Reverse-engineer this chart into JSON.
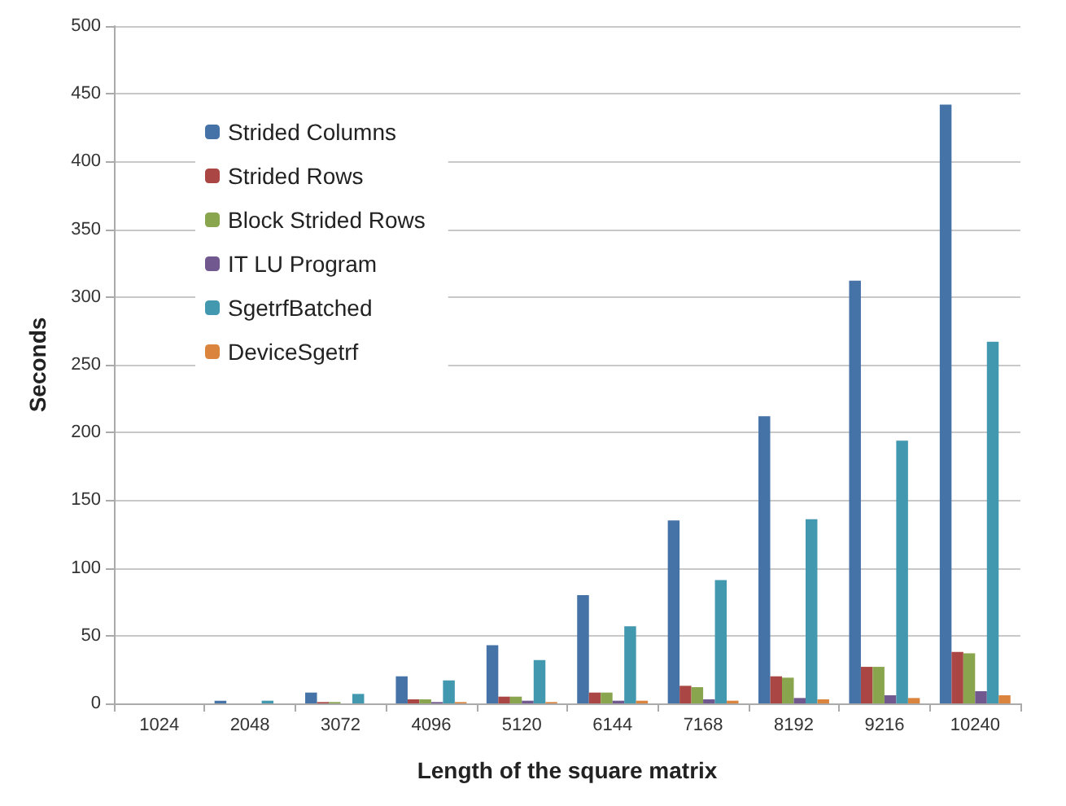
{
  "chart_data": {
    "type": "bar",
    "xlabel": "Length of the square matrix",
    "ylabel": "Seconds",
    "categories": [
      "1024",
      "2048",
      "3072",
      "4096",
      "5120",
      "6144",
      "7168",
      "8192",
      "9216",
      "10240"
    ],
    "series": [
      {
        "name": "Strided Columns",
        "color": "#4572a7",
        "values": [
          0,
          2,
          8,
          20,
          43,
          80,
          135,
          212,
          312,
          442
        ]
      },
      {
        "name": "Strided Rows",
        "color": "#aa4643",
        "values": [
          0,
          0,
          1,
          3,
          5,
          8,
          13,
          20,
          27,
          38
        ]
      },
      {
        "name": "Block Strided Rows",
        "color": "#89a54e",
        "values": [
          0,
          0,
          1,
          3,
          5,
          8,
          12,
          19,
          27,
          37
        ]
      },
      {
        "name": "IT LU Program",
        "color": "#71588f",
        "values": [
          0,
          0,
          0,
          1,
          2,
          2,
          3,
          4,
          6,
          9
        ]
      },
      {
        "name": "SgetrfBatched",
        "color": "#4198af",
        "values": [
          0,
          2,
          7,
          17,
          32,
          57,
          91,
          136,
          194,
          267
        ]
      },
      {
        "name": "DeviceSgetrf",
        "color": "#db843d",
        "values": [
          0,
          0,
          0,
          1,
          1,
          2,
          2,
          3,
          4,
          6
        ]
      }
    ],
    "ylim": [
      0,
      500
    ],
    "yticks": [
      0,
      50,
      100,
      150,
      200,
      250,
      300,
      350,
      400,
      450,
      500
    ],
    "grid": "y",
    "legend": "top left"
  }
}
